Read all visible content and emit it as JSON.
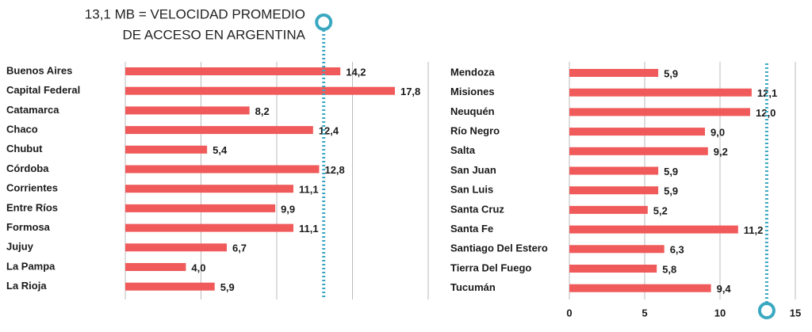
{
  "chart_data": [
    {
      "type": "bar",
      "orientation": "horizontal",
      "annotation": [
        "13,1 MB = VELOCIDAD PROMEDIO",
        "DE ACCESO EN ARGENTINA"
      ],
      "reference_value": 13.1,
      "reference_color": "#3aa8c1",
      "categories": [
        "Buenos Aires",
        "Capital Federal",
        "Catamarca",
        "Chaco",
        "Chubut",
        "Córdoba",
        "Corrientes",
        "Entre Ríos",
        "Formosa",
        "Jujuy",
        "La Pampa",
        "La Rioja"
      ],
      "values": [
        14.2,
        17.8,
        8.2,
        12.4,
        5.4,
        12.8,
        11.1,
        9.9,
        11.1,
        6.7,
        4.0,
        5.9
      ],
      "value_labels": [
        "14,2",
        "17,8",
        "8,2",
        "12,4",
        "5,4",
        "12,8",
        "11,1",
        "9,9",
        "11,1",
        "6,7",
        "4,0",
        "5,9"
      ],
      "color": "#f05a5a",
      "xlim": [
        0,
        15
      ],
      "grid": true
    },
    {
      "type": "bar",
      "orientation": "horizontal",
      "reference_value": 13.1,
      "reference_color": "#3aa8c1",
      "categories": [
        "Mendoza",
        "Misiones",
        "Neuquén",
        "Río Negro",
        "Salta",
        "San Juan",
        "San Luis",
        "Santa Cruz",
        "Santa Fe",
        "Santiago Del Estero",
        "Tierra Del Fuego",
        "Tucumán"
      ],
      "values": [
        5.9,
        12.1,
        12.0,
        9.0,
        9.2,
        5.9,
        5.9,
        5.2,
        11.2,
        6.3,
        5.8,
        9.4
      ],
      "value_labels": [
        "5,9",
        "12,1",
        "12,0",
        "9,0",
        "9,2",
        "5,9",
        "5,9",
        "5,2",
        "11,2",
        "6,3",
        "5,8",
        "9,4"
      ],
      "color": "#f05a5a",
      "xlim": [
        0,
        15
      ],
      "xticks": [
        0,
        5,
        10,
        15
      ],
      "grid": true
    }
  ]
}
